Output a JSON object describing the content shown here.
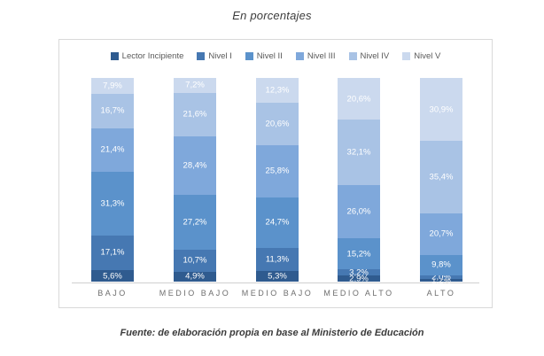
{
  "title": "En porcentajes",
  "footer": "Fuente: de elaboración propia en base al Ministerio de Educación",
  "chart_data": {
    "type": "bar",
    "stacked": true,
    "orientation": "vertical",
    "unit": "%",
    "title": "En porcentajes",
    "xlabel": "",
    "ylabel": "",
    "ylim": [
      0,
      100
    ],
    "grid": false,
    "y_axis_visible": false,
    "legend_position": "top",
    "value_labels": true,
    "value_label_color": "#FFFFFF",
    "categories": [
      "BAJO",
      "MEDIO BAJO",
      "MEDIO BAJO",
      "MEDIO ALTO",
      "ALTO"
    ],
    "series": [
      {
        "name": "Lector Incipiente",
        "color": "#2F5B8F",
        "values": [
          5.6,
          4.9,
          5.3,
          2.9,
          1.2
        ],
        "labels": [
          "5,6%",
          "4,9%",
          "5,3%",
          "2,9%",
          "1,2%"
        ]
      },
      {
        "name": "Nivel I",
        "color": "#4678B2",
        "values": [
          17.1,
          10.7,
          11.3,
          3.2,
          2.0
        ],
        "labels": [
          "17,1%",
          "10,7%",
          "11,3%",
          "3,2%",
          "2,0%"
        ]
      },
      {
        "name": "Nivel II",
        "color": "#5B92CB",
        "values": [
          31.3,
          27.2,
          24.7,
          15.2,
          9.8
        ],
        "labels": [
          "31,3%",
          "27,2%",
          "24,7%",
          "15,2%",
          "9,8%"
        ]
      },
      {
        "name": "Nivel III",
        "color": "#7FA8DB",
        "values": [
          21.4,
          28.4,
          25.8,
          26.0,
          20.7
        ],
        "labels": [
          "21,4%",
          "28,4%",
          "25,8%",
          "26,0%",
          "20,7%"
        ]
      },
      {
        "name": "Nivel IV",
        "color": "#A9C3E5",
        "values": [
          16.7,
          21.6,
          20.6,
          32.1,
          35.4
        ],
        "labels": [
          "16,7%",
          "21,6%",
          "20,6%",
          "32,1%",
          "35,4%"
        ]
      },
      {
        "name": "Nivel V",
        "color": "#CBD9EE",
        "values": [
          7.9,
          7.2,
          12.3,
          20.6,
          30.9
        ],
        "labels": [
          "7,9%",
          "7,2%",
          "12,3%",
          "20,6%",
          "30,9%"
        ]
      }
    ]
  }
}
